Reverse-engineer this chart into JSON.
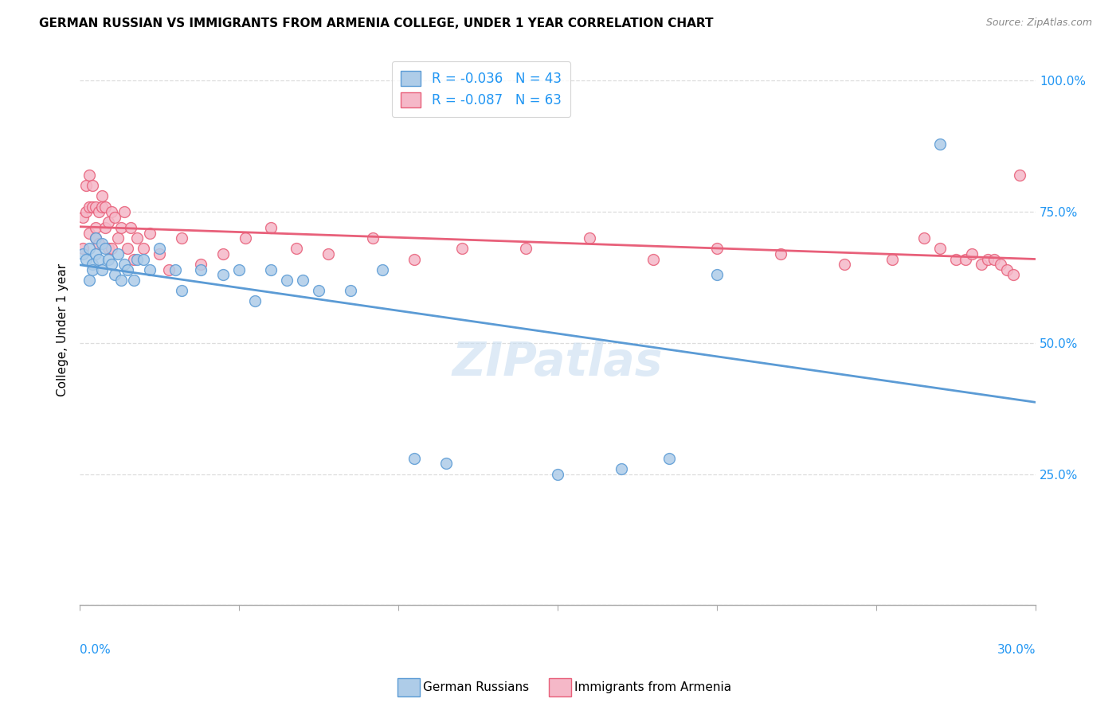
{
  "title": "GERMAN RUSSIAN VS IMMIGRANTS FROM ARMENIA COLLEGE, UNDER 1 YEAR CORRELATION CHART",
  "source": "Source: ZipAtlas.com",
  "ylabel": "College, Under 1 year",
  "y_ticks": [
    0.0,
    0.25,
    0.5,
    0.75,
    1.0
  ],
  "y_tick_labels": [
    "",
    "25.0%",
    "50.0%",
    "75.0%",
    "100.0%"
  ],
  "x_range": [
    0.0,
    0.3
  ],
  "y_range": [
    0.0,
    1.05
  ],
  "legend_label1": "R = -0.036   N = 43",
  "legend_label2": "R = -0.087   N = 63",
  "s1_face": "#aecce8",
  "s2_face": "#f5b8c8",
  "s1_edge": "#5b9bd5",
  "s2_edge": "#e8607a",
  "line1_color": "#5b9bd5",
  "line2_color": "#e8607a",
  "tick_color": "#2196F3",
  "watermark": "ZIPatlas",
  "gr_x": [
    0.001,
    0.002,
    0.003,
    0.003,
    0.004,
    0.004,
    0.005,
    0.005,
    0.006,
    0.007,
    0.007,
    0.008,
    0.009,
    0.01,
    0.011,
    0.012,
    0.013,
    0.014,
    0.015,
    0.017,
    0.018,
    0.02,
    0.022,
    0.025,
    0.03,
    0.032,
    0.038,
    0.045,
    0.05,
    0.055,
    0.06,
    0.065,
    0.07,
    0.075,
    0.085,
    0.095,
    0.105,
    0.115,
    0.15,
    0.17,
    0.185,
    0.2,
    0.27
  ],
  "gr_y": [
    0.67,
    0.66,
    0.68,
    0.62,
    0.65,
    0.64,
    0.7,
    0.67,
    0.66,
    0.69,
    0.64,
    0.68,
    0.66,
    0.65,
    0.63,
    0.67,
    0.62,
    0.65,
    0.64,
    0.62,
    0.66,
    0.66,
    0.64,
    0.68,
    0.64,
    0.6,
    0.64,
    0.63,
    0.64,
    0.58,
    0.64,
    0.62,
    0.62,
    0.6,
    0.6,
    0.64,
    0.28,
    0.27,
    0.25,
    0.26,
    0.28,
    0.63,
    0.88
  ],
  "arm_x": [
    0.001,
    0.001,
    0.002,
    0.002,
    0.003,
    0.003,
    0.003,
    0.004,
    0.004,
    0.005,
    0.005,
    0.005,
    0.006,
    0.006,
    0.007,
    0.007,
    0.008,
    0.008,
    0.009,
    0.009,
    0.01,
    0.01,
    0.011,
    0.012,
    0.013,
    0.014,
    0.015,
    0.016,
    0.017,
    0.018,
    0.02,
    0.022,
    0.025,
    0.028,
    0.032,
    0.038,
    0.045,
    0.052,
    0.06,
    0.068,
    0.078,
    0.092,
    0.105,
    0.12,
    0.14,
    0.16,
    0.18,
    0.2,
    0.22,
    0.24,
    0.255,
    0.265,
    0.27,
    0.275,
    0.278,
    0.28,
    0.283,
    0.285,
    0.287,
    0.289,
    0.291,
    0.293,
    0.295
  ],
  "arm_y": [
    0.68,
    0.74,
    0.75,
    0.8,
    0.82,
    0.76,
    0.71,
    0.76,
    0.8,
    0.76,
    0.7,
    0.72,
    0.75,
    0.69,
    0.76,
    0.78,
    0.72,
    0.76,
    0.73,
    0.68,
    0.75,
    0.68,
    0.74,
    0.7,
    0.72,
    0.75,
    0.68,
    0.72,
    0.66,
    0.7,
    0.68,
    0.71,
    0.67,
    0.64,
    0.7,
    0.65,
    0.67,
    0.7,
    0.72,
    0.68,
    0.67,
    0.7,
    0.66,
    0.68,
    0.68,
    0.7,
    0.66,
    0.68,
    0.67,
    0.65,
    0.66,
    0.7,
    0.68,
    0.66,
    0.66,
    0.67,
    0.65,
    0.66,
    0.66,
    0.65,
    0.64,
    0.63,
    0.82
  ]
}
